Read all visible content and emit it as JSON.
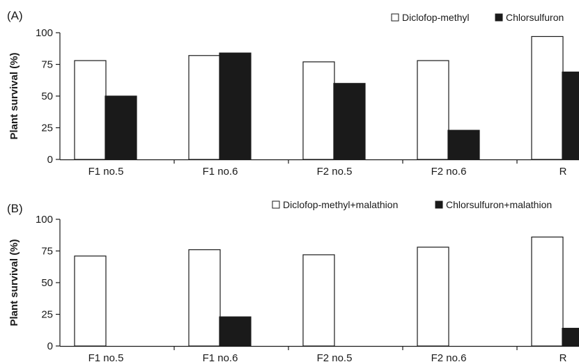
{
  "chart_data": [
    {
      "type": "bar",
      "panel_label": "(A)",
      "categories": [
        "F1 no.5",
        "F1 no.6",
        "F2 no.5",
        "F2 no.6",
        "R"
      ],
      "series": [
        {
          "name": "Diclofop-methyl",
          "values": [
            78,
            82,
            77,
            78,
            97
          ],
          "color": "#ffffff"
        },
        {
          "name": "Chlorsulfuron",
          "values": [
            50,
            84,
            60,
            23,
            69
          ],
          "color": "#1a1a1a"
        }
      ],
      "ylabel": "Plant survival (%)",
      "ylim": [
        0,
        100
      ],
      "yticks": [
        0,
        25,
        50,
        75,
        100
      ],
      "legend_position": "top-right",
      "grid": false
    },
    {
      "type": "bar",
      "panel_label": "(B)",
      "categories": [
        "F1 no.5",
        "F1 no.6",
        "F2 no.5",
        "F2 no.6",
        "R"
      ],
      "series": [
        {
          "name": "Diclofop-methyl+malathion",
          "values": [
            71,
            76,
            72,
            78,
            86
          ],
          "color": "#ffffff"
        },
        {
          "name": "Chlorsulfuron+malathion",
          "values": [
            0,
            23,
            0,
            0,
            14
          ],
          "color": "#1a1a1a"
        }
      ],
      "ylabel": "Plant survival (%)",
      "ylim": [
        0,
        100
      ],
      "yticks": [
        0,
        25,
        50,
        75,
        100
      ],
      "legend_position": "top-right",
      "grid": false
    }
  ]
}
